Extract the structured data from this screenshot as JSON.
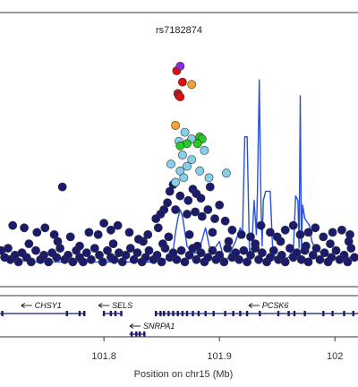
{
  "chart_data": {
    "type": "scatter",
    "title": "rs7182874",
    "xlabel": "Position on chr15 (Mb)",
    "ylabel": "",
    "xlim": [
      101.71,
      102.02
    ],
    "ylim": [
      0,
      10
    ],
    "grid": false,
    "x_ticks": [
      {
        "value": 101.8,
        "label": "101.8"
      },
      {
        "value": 101.9,
        "label": "101.9"
      },
      {
        "value": 102.0,
        "label": "102"
      }
    ],
    "colors": {
      "ld_very_low": "#1a1a6e",
      "ld_low": "#87ceeb",
      "ld_mid": "#22cc22",
      "ld_high": "#f5a030",
      "ld_very_high": "#e01010",
      "index": "#8a2be2",
      "recomb_line": "#2b50d8"
    },
    "snp_series": [
      {
        "color": "#8a2be2",
        "points": [
          [
            101.866,
            8.9
          ]
        ]
      },
      {
        "color": "#e01010",
        "points": [
          [
            101.863,
            8.7
          ],
          [
            101.868,
            8.2
          ],
          [
            101.864,
            7.7
          ],
          [
            101.865,
            7.6
          ],
          [
            101.866,
            7.55
          ]
        ]
      },
      {
        "color": "#f5a030",
        "points": [
          [
            101.876,
            8.1
          ],
          [
            101.862,
            6.3
          ]
        ]
      },
      {
        "color": "#22cc22",
        "points": [
          [
            101.883,
            5.8
          ],
          [
            101.885,
            5.7
          ],
          [
            101.872,
            5.5
          ],
          [
            101.881,
            5.5
          ],
          [
            101.866,
            5.4
          ]
        ]
      },
      {
        "color": "#87ceeb",
        "points": [
          [
            101.87,
            6.0
          ],
          [
            101.876,
            5.7
          ],
          [
            101.865,
            5.6
          ],
          [
            101.887,
            5.2
          ],
          [
            101.868,
            5.0
          ],
          [
            101.876,
            4.8
          ],
          [
            101.858,
            4.6
          ],
          [
            101.872,
            4.5
          ],
          [
            101.866,
            4.3
          ],
          [
            101.883,
            4.3
          ],
          [
            101.906,
            4.2
          ],
          [
            101.869,
            4.0
          ],
          [
            101.891,
            4.0
          ],
          [
            101.862,
            3.8
          ]
        ]
      },
      {
        "color": "#1a1a6e",
        "points": [
          [
            101.764,
            3.6
          ],
          [
            101.86,
            3.7
          ],
          [
            101.892,
            3.6
          ],
          [
            101.857,
            3.4
          ],
          [
            101.877,
            3.5
          ],
          [
            101.866,
            3.2
          ],
          [
            101.873,
            3.0
          ],
          [
            101.88,
            3.3
          ],
          [
            101.884,
            3.1
          ],
          [
            101.855,
            2.9
          ],
          [
            101.89,
            2.6
          ],
          [
            101.9,
            2.8
          ],
          [
            101.852,
            2.6
          ],
          [
            101.862,
            2.6
          ],
          [
            101.849,
            2.4
          ],
          [
            101.872,
            2.4
          ],
          [
            101.879,
            2.5
          ],
          [
            101.885,
            2.3
          ],
          [
            101.896,
            2.2
          ],
          [
            101.905,
            2.1
          ],
          [
            101.845,
            2.2
          ],
          [
            101.721,
            1.9
          ],
          [
            101.731,
            1.8
          ],
          [
            101.742,
            1.6
          ],
          [
            101.749,
            1.8
          ],
          [
            101.757,
            1.5
          ],
          [
            101.771,
            1.4
          ],
          [
            101.787,
            1.6
          ],
          [
            101.795,
            1.5
          ],
          [
            101.8,
            2.0
          ],
          [
            101.806,
            1.7
          ],
          [
            101.812,
            1.9
          ],
          [
            101.822,
            1.6
          ],
          [
            101.83,
            1.3
          ],
          [
            101.838,
            1.5
          ],
          [
            101.847,
            1.8
          ],
          [
            101.856,
            1.4
          ],
          [
            101.874,
            1.5
          ],
          [
            101.894,
            1.6
          ],
          [
            101.911,
            1.7
          ],
          [
            101.919,
            1.5
          ],
          [
            101.927,
            1.4
          ],
          [
            101.936,
            1.9
          ],
          [
            101.944,
            1.6
          ],
          [
            101.95,
            1.4
          ],
          [
            101.957,
            1.7
          ],
          [
            101.964,
            1.9
          ],
          [
            101.97,
            1.5
          ],
          [
            101.977,
            1.6
          ],
          [
            101.983,
            1.8
          ],
          [
            101.99,
            1.4
          ],
          [
            101.998,
            1.6
          ],
          [
            102.006,
            1.7
          ],
          [
            102.013,
            1.5
          ],
          [
            101.711,
            0.8
          ],
          [
            101.714,
            0.5
          ],
          [
            101.717,
            0.9
          ],
          [
            101.719,
            0.4
          ],
          [
            101.723,
            0.6
          ],
          [
            101.726,
            0.3
          ],
          [
            101.729,
            0.7
          ],
          [
            101.733,
            0.5
          ],
          [
            101.737,
            0.3
          ],
          [
            101.741,
            0.8
          ],
          [
            101.745,
            0.4
          ],
          [
            101.748,
            0.6
          ],
          [
            101.752,
            0.3
          ],
          [
            101.755,
            0.7
          ],
          [
            101.759,
            0.5
          ],
          [
            101.762,
            0.9
          ],
          [
            101.766,
            0.4
          ],
          [
            101.769,
            0.6
          ],
          [
            101.773,
            0.3
          ],
          [
            101.776,
            0.8
          ],
          [
            101.779,
            0.5
          ],
          [
            101.782,
            0.3
          ],
          [
            101.785,
            0.7
          ],
          [
            101.789,
            0.4
          ],
          [
            101.792,
            0.9
          ],
          [
            101.796,
            0.6
          ],
          [
            101.799,
            0.3
          ],
          [
            101.803,
            0.8
          ],
          [
            101.806,
            0.5
          ],
          [
            101.809,
            0.4
          ],
          [
            101.813,
            0.7
          ],
          [
            101.816,
            0.3
          ],
          [
            101.819,
            0.6
          ],
          [
            101.823,
            0.9
          ],
          [
            101.826,
            0.4
          ],
          [
            101.829,
            0.7
          ],
          [
            101.833,
            0.3
          ],
          [
            101.836,
            0.5
          ],
          [
            101.839,
            0.8
          ],
          [
            101.843,
            0.4
          ],
          [
            101.846,
            0.6
          ],
          [
            101.85,
            0.3
          ],
          [
            101.853,
            0.9
          ],
          [
            101.857,
            0.5
          ],
          [
            101.86,
            0.7
          ],
          [
            101.863,
            0.4
          ],
          [
            101.867,
            0.8
          ],
          [
            101.87,
            0.3
          ],
          [
            101.874,
            0.6
          ],
          [
            101.877,
            0.9
          ],
          [
            101.88,
            0.4
          ],
          [
            101.884,
            0.7
          ],
          [
            101.887,
            0.3
          ],
          [
            101.89,
            0.5
          ],
          [
            101.894,
            0.8
          ],
          [
            101.897,
            0.4
          ],
          [
            101.9,
            0.6
          ],
          [
            101.904,
            0.3
          ],
          [
            101.907,
            0.9
          ],
          [
            101.911,
            0.5
          ],
          [
            101.914,
            0.7
          ],
          [
            101.917,
            0.4
          ],
          [
            101.921,
            0.8
          ],
          [
            101.924,
            0.3
          ],
          [
            101.927,
            0.6
          ],
          [
            101.931,
            0.9
          ],
          [
            101.934,
            0.4
          ],
          [
            101.937,
            0.7
          ],
          [
            101.941,
            0.3
          ],
          [
            101.944,
            0.5
          ],
          [
            101.947,
            0.8
          ],
          [
            101.951,
            0.4
          ],
          [
            101.954,
            0.6
          ],
          [
            101.957,
            0.3
          ],
          [
            101.961,
            0.9
          ],
          [
            101.964,
            0.5
          ],
          [
            101.967,
            0.7
          ],
          [
            101.971,
            0.4
          ],
          [
            101.974,
            0.8
          ],
          [
            101.977,
            0.3
          ],
          [
            101.981,
            0.6
          ],
          [
            101.984,
            0.9
          ],
          [
            101.987,
            0.4
          ],
          [
            101.991,
            0.7
          ],
          [
            101.994,
            0.3
          ],
          [
            101.997,
            0.5
          ],
          [
            102.001,
            0.8
          ],
          [
            102.004,
            0.4
          ],
          [
            102.008,
            0.6
          ],
          [
            102.011,
            0.3
          ],
          [
            102.014,
            0.9
          ],
          [
            102.017,
            0.5
          ],
          [
            101.735,
            1.1
          ],
          [
            101.76,
            1.2
          ],
          [
            101.779,
            1.0
          ],
          [
            101.808,
            1.1
          ],
          [
            101.834,
            1.2
          ],
          [
            101.851,
            1.1
          ],
          [
            101.881,
            1.0
          ],
          [
            101.908,
            1.2
          ],
          [
            101.931,
            1.1
          ],
          [
            101.953,
            1.2
          ],
          [
            101.975,
            1.0
          ],
          [
            101.996,
            1.1
          ],
          [
            102.012,
            1.2
          ]
        ]
      }
    ],
    "recombination": {
      "color": "#2b50d8",
      "x": [
        101.71,
        101.72,
        101.74,
        101.76,
        101.78,
        101.8,
        101.82,
        101.84,
        101.85,
        101.855,
        101.858,
        101.86,
        101.862,
        101.864,
        101.866,
        101.868,
        101.872,
        101.876,
        101.88,
        101.884,
        101.888,
        101.892,
        101.896,
        101.9,
        101.904,
        101.906,
        101.908,
        101.91,
        101.914,
        101.918,
        101.92,
        101.922,
        101.924,
        101.926,
        101.928,
        101.93,
        101.932,
        101.933,
        101.9345,
        101.936,
        101.937,
        101.938,
        101.94,
        101.944,
        101.946,
        101.948,
        101.95,
        101.954,
        101.96,
        101.962,
        101.964,
        101.966,
        101.968,
        101.969,
        101.97,
        101.971,
        101.972,
        101.974,
        101.978,
        101.98,
        101.982,
        101.984,
        101.99,
        102.0,
        102.01,
        102.02
      ],
      "y": [
        0.5,
        0.4,
        0.3,
        0.3,
        0.3,
        0.3,
        0.3,
        0.3,
        0.35,
        0.45,
        0.5,
        0.8,
        1.6,
        2.2,
        2.6,
        2.3,
        1.0,
        0.7,
        0.7,
        1.1,
        1.8,
        0.8,
        0.9,
        1.2,
        0.4,
        0.4,
        0.5,
        0.8,
        1.2,
        1.8,
        1.6,
        5.8,
        5.8,
        0.8,
        0.9,
        3.0,
        1.5,
        3.5,
        8.3,
        2.8,
        1.0,
        3.0,
        3.4,
        3.4,
        1.0,
        0.5,
        0.4,
        0.4,
        0.5,
        0.7,
        0.7,
        3.2,
        3.0,
        0.9,
        7.6,
        0.8,
        2.8,
        2.2,
        1.9,
        1.2,
        1.0,
        0.9,
        0.6,
        0.5,
        0.5,
        0.5
      ]
    },
    "genes": [
      {
        "name": "CHSY1",
        "start": 101.709,
        "end": 101.784,
        "strand": "-",
        "label_x": 101.74,
        "row": 0,
        "exons": [
          101.712,
          101.768,
          101.779,
          101.783
        ]
      },
      {
        "name": "SELS",
        "start": 101.799,
        "end": 101.816,
        "strand": "-",
        "label_x": 101.807,
        "row": 0,
        "exons": [
          101.8,
          101.806,
          101.81,
          101.815
        ]
      },
      {
        "name": "PCSK6",
        "start": 101.844,
        "end": 102.02,
        "strand": "-",
        "label_x": 101.937,
        "row": 0,
        "exons": [
          101.845,
          101.849,
          101.852,
          101.856,
          101.86,
          101.864,
          101.868,
          101.872,
          101.877,
          101.882,
          101.888,
          101.895,
          101.905,
          101.912,
          101.918,
          101.924,
          101.935,
          101.951,
          101.96,
          101.965,
          101.974,
          101.99,
          101.998,
          102.008,
          102.016
        ]
      },
      {
        "name": "SNRPA1",
        "start": 101.822,
        "end": 101.836,
        "strand": "-",
        "label_x": 101.834,
        "row": 1,
        "exons": [
          101.824,
          101.828,
          101.831,
          101.835
        ]
      }
    ]
  }
}
